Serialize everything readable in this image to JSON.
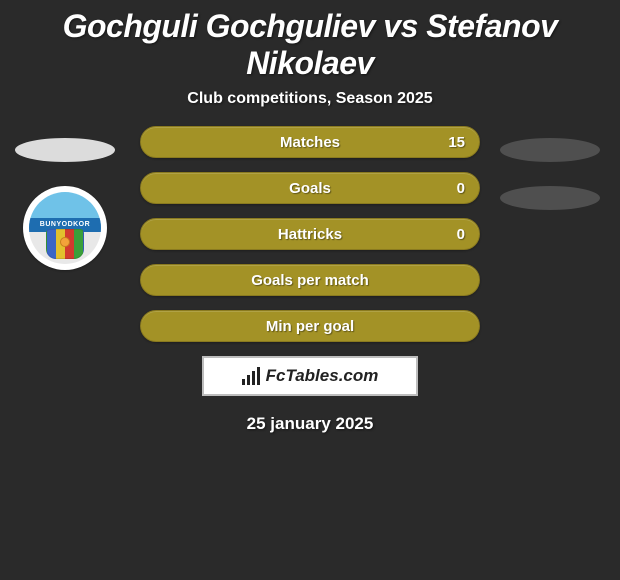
{
  "title": "Gochguli Gochguliev vs Stefanov Nikolaev",
  "subtitle": "Club competitions, Season 2025",
  "left_player": {
    "club_name": "BUNYODKOR"
  },
  "stats": {
    "bar_color": "#a39226",
    "rows": [
      {
        "label": "Matches",
        "value_right": "15"
      },
      {
        "label": "Goals",
        "value_right": "0"
      },
      {
        "label": "Hattricks",
        "value_right": "0"
      },
      {
        "label": "Goals per match",
        "value_right": ""
      },
      {
        "label": "Min per goal",
        "value_right": ""
      }
    ]
  },
  "brand": "FcTables.com",
  "date": "25 january 2025",
  "background_color": "#2a2a2a"
}
